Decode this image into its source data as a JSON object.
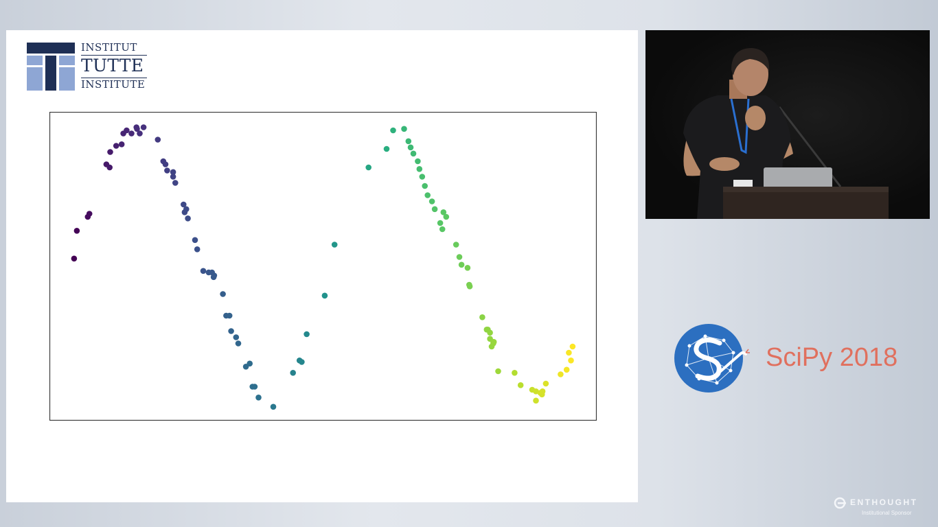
{
  "logo": {
    "line1": "INSTITUT",
    "line2": "TUTTE",
    "line3": "INSTITUTE",
    "colors": {
      "dark": "#1e2f55",
      "light": "#8ea6d4"
    }
  },
  "conference": {
    "name": "SciPy 2018",
    "logo_icon": "scipy-snake-network-icon",
    "logo_color": "#2c6fc0",
    "text_color": "#e0705e"
  },
  "sponsor": {
    "name": "ENTHOUGHT",
    "subtitle": "Institutional Sponsor",
    "icon": "enthought-logo-icon"
  },
  "video": {
    "content": "speaker-at-podium",
    "icon": "speaker-video-icon"
  },
  "chart_data": {
    "type": "scatter",
    "title": "",
    "xlabel": "",
    "ylabel": "",
    "xlim": [
      0,
      10
    ],
    "ylim": [
      0,
      10
    ],
    "grid": false,
    "axis_ticks": false,
    "colormap": "viridis",
    "color_by": "x",
    "colormap_stops": [
      "#440154",
      "#472d7b",
      "#3b528b",
      "#2c728e",
      "#21918c",
      "#28ae80",
      "#5ec962",
      "#addc30",
      "#fde725"
    ],
    "x": [
      0.45,
      0.5,
      0.7,
      0.73,
      1.04,
      1.1,
      1.11,
      1.22,
      1.32,
      1.35,
      1.41,
      1.59,
      1.5,
      1.6,
      1.65,
      1.72,
      1.98,
      2.08,
      2.12,
      2.15,
      2.3,
      2.26,
      2.26,
      2.45,
      2.47,
      2.5,
      2.53,
      2.66,
      2.7,
      2.81,
      2.91,
      2.97,
      3.0,
      3.01,
      3.17,
      3.23,
      3.29,
      3.32,
      3.41,
      3.45,
      3.59,
      3.66,
      3.75,
      3.71,
      3.82,
      4.09,
      4.45,
      4.57,
      4.61,
      4.7,
      5.03,
      5.21,
      5.83,
      6.16,
      6.28,
      6.48,
      6.56,
      6.6,
      6.65,
      6.73,
      6.76,
      6.81,
      6.86,
      6.91,
      6.99,
      7.04,
      7.18,
      7.14,
      7.25,
      7.2,
      7.43,
      7.49,
      7.53,
      7.64,
      7.67,
      7.68,
      7.91,
      7.99,
      8.05,
      8.01,
      8.05,
      8.11,
      8.08,
      8.11,
      8.12,
      8.2,
      8.5,
      8.61,
      8.82,
      8.89,
      8.89,
      9.0,
      8.97,
      9.01,
      9.07,
      9.34,
      9.45,
      9.53,
      9.49,
      9.56
    ],
    "y": [
      5.25,
      6.15,
      6.6,
      6.7,
      8.3,
      8.2,
      8.7,
      8.9,
      8.95,
      9.3,
      9.4,
      9.5,
      9.3,
      9.45,
      9.3,
      9.5,
      9.1,
      8.4,
      8.3,
      8.1,
      7.7,
      7.9,
      8.05,
      7.0,
      6.75,
      6.85,
      6.55,
      5.85,
      5.55,
      4.85,
      4.8,
      4.8,
      4.65,
      4.7,
      4.1,
      3.4,
      3.4,
      2.9,
      2.7,
      2.5,
      1.75,
      1.85,
      1.1,
      1.1,
      0.75,
      0.45,
      1.55,
      1.95,
      1.9,
      2.8,
      4.05,
      5.7,
      8.2,
      8.8,
      9.4,
      9.45,
      9.05,
      8.85,
      8.65,
      8.4,
      8.15,
      7.9,
      7.6,
      7.3,
      7.1,
      6.85,
      6.2,
      6.4,
      6.6,
      6.75,
      5.7,
      5.3,
      5.05,
      4.95,
      4.4,
      4.35,
      3.35,
      2.95,
      2.85,
      2.95,
      2.65,
      2.55,
      2.4,
      2.5,
      2.55,
      1.6,
      1.55,
      1.15,
      1.0,
      0.95,
      0.65,
      0.85,
      0.9,
      0.95,
      1.2,
      1.5,
      1.65,
      1.95,
      2.2,
      2.4
    ]
  }
}
